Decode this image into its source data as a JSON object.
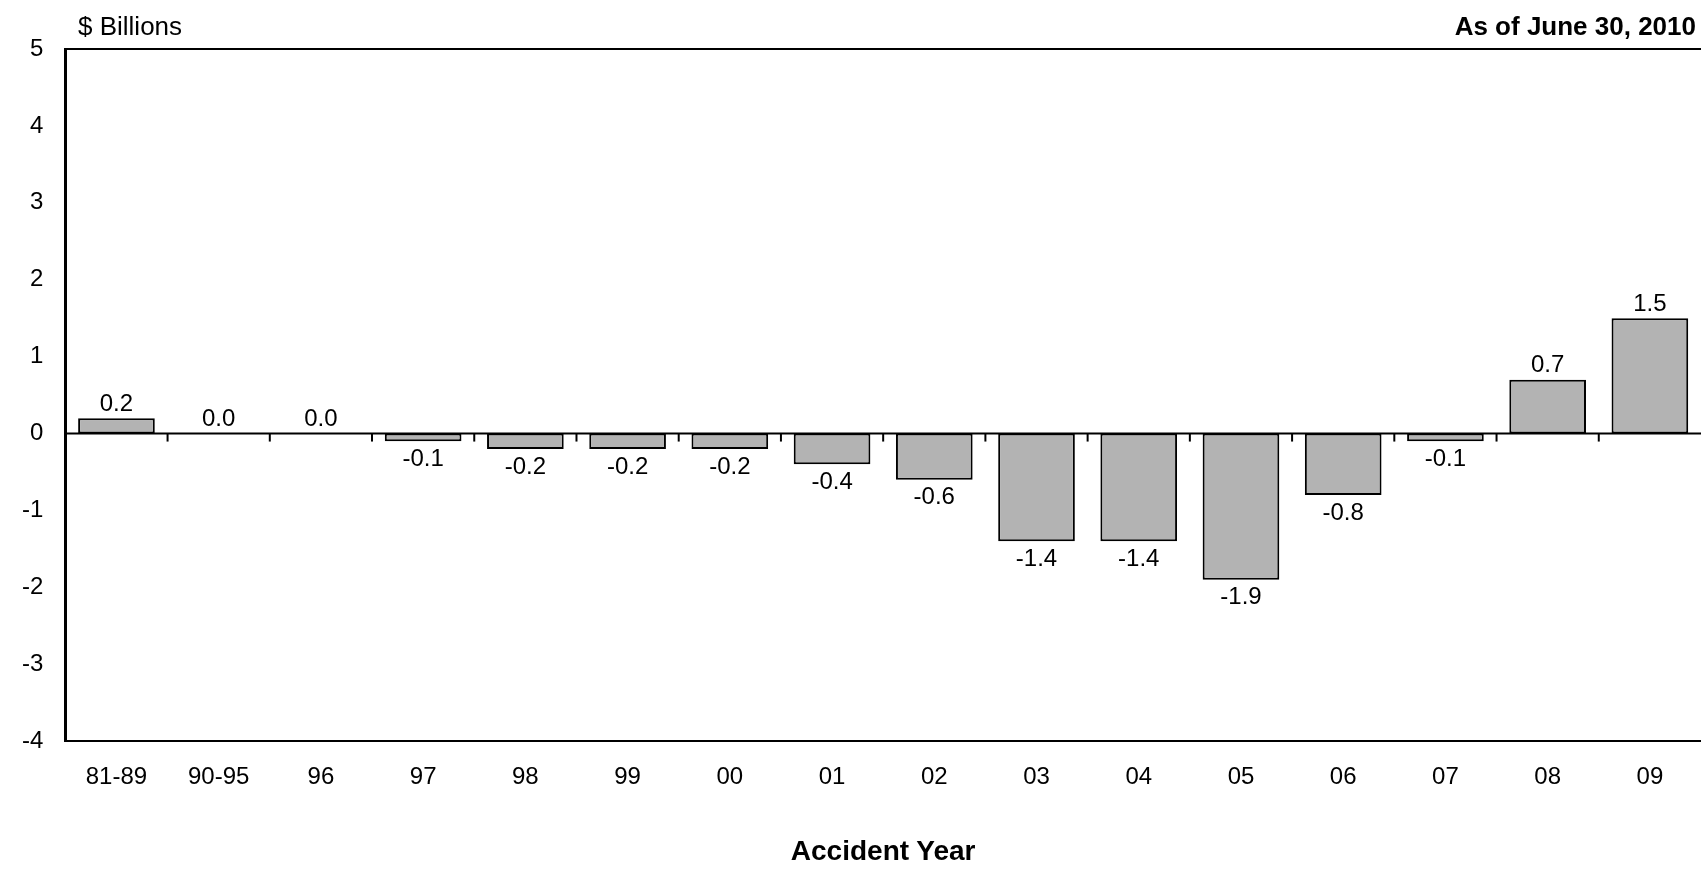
{
  "chart_data": {
    "type": "bar",
    "xlabel": "Accident Year",
    "ylabel": "$ Billions",
    "annotations": [
      "As of June 30, 2010"
    ],
    "categories": [
      "81-89",
      "90-95",
      "96",
      "97",
      "98",
      "99",
      "00",
      "01",
      "02",
      "03",
      "04",
      "05",
      "06",
      "07",
      "08",
      "09"
    ],
    "values": [
      0.2,
      0.0,
      0.0,
      -0.1,
      -0.2,
      -0.2,
      -0.2,
      -0.4,
      -0.6,
      -1.4,
      -1.4,
      -1.9,
      -0.8,
      -0.1,
      0.7,
      1.5
    ],
    "value_labels": [
      "0.2",
      "0.0",
      "0.0",
      "-0.1",
      "-0.2",
      "-0.2",
      "-0.2",
      "-0.4",
      "-0.6",
      "-1.4",
      "-1.4",
      "-1.9",
      "-0.8",
      "-0.1",
      "0.7",
      "1.5"
    ],
    "color": "#b3b3b3",
    "ylim": [
      -4,
      5
    ],
    "yticks": [
      -4,
      -3,
      -2,
      -1,
      0,
      1,
      2,
      3,
      4,
      5
    ],
    "legend": false
  }
}
